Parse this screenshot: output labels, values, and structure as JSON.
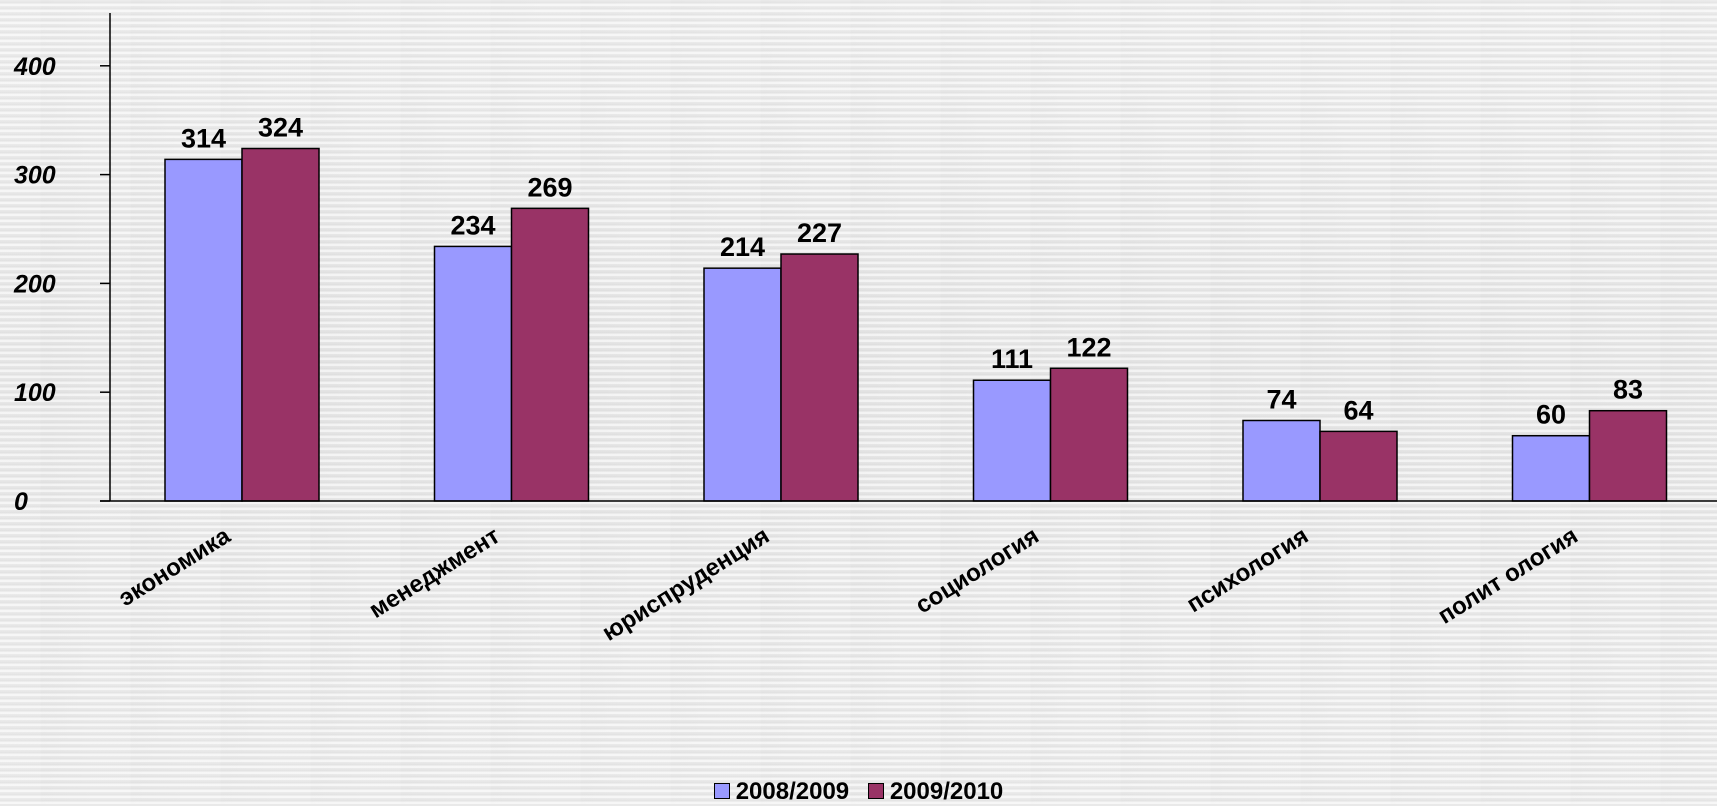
{
  "chart_data": {
    "type": "bar",
    "categories": [
      "экономика",
      "менеджмент",
      "юриспруденция",
      "социология",
      "психология",
      "полит ология"
    ],
    "series": [
      {
        "name": "2008/2009",
        "values": [
          314,
          234,
          214,
          111,
          74,
          60
        ],
        "color": "#9999ff"
      },
      {
        "name": "2009/2010",
        "values": [
          324,
          269,
          227,
          122,
          64,
          83
        ],
        "color": "#993366"
      }
    ],
    "yticks": [
      "0",
      "100",
      "200",
      "300",
      "400"
    ],
    "ylim": [
      0,
      450
    ],
    "grid": false,
    "legend": "bottom"
  }
}
